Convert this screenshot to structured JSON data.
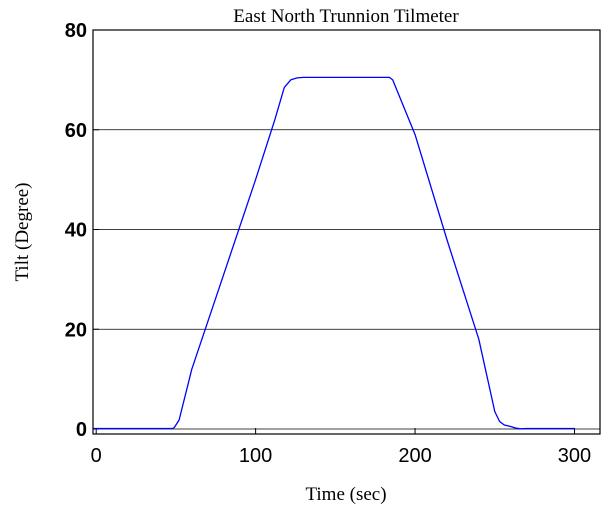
{
  "chart_data": {
    "type": "line",
    "title": "East North Trunnion Tilmeter",
    "xlabel": "Time (sec)",
    "ylabel": "Tilt (Degree)",
    "xlim": [
      -2,
      316
    ],
    "ylim": [
      -1,
      80
    ],
    "x_ticks": [
      0,
      100,
      200,
      300
    ],
    "y_ticks": [
      0,
      20,
      40,
      60,
      80
    ],
    "grid": "horizontal",
    "line_color": "#0000ff",
    "series": [
      {
        "x": [
          -2,
          48,
          49,
          52,
          60,
          80,
          100,
          112,
          118,
          122,
          126,
          130,
          150,
          170,
          184,
          186,
          200,
          220,
          240,
          250,
          253,
          256,
          260,
          263,
          266,
          270,
          300
        ],
        "values": [
          0.1,
          0.1,
          0.3,
          1.8,
          12,
          31,
          50,
          62,
          68.5,
          70.0,
          70.4,
          70.5,
          70.5,
          70.5,
          70.5,
          70.0,
          59,
          38,
          18,
          3.5,
          1.5,
          0.8,
          0.5,
          0.2,
          0.05,
          0.1,
          0.1
        ]
      }
    ]
  }
}
